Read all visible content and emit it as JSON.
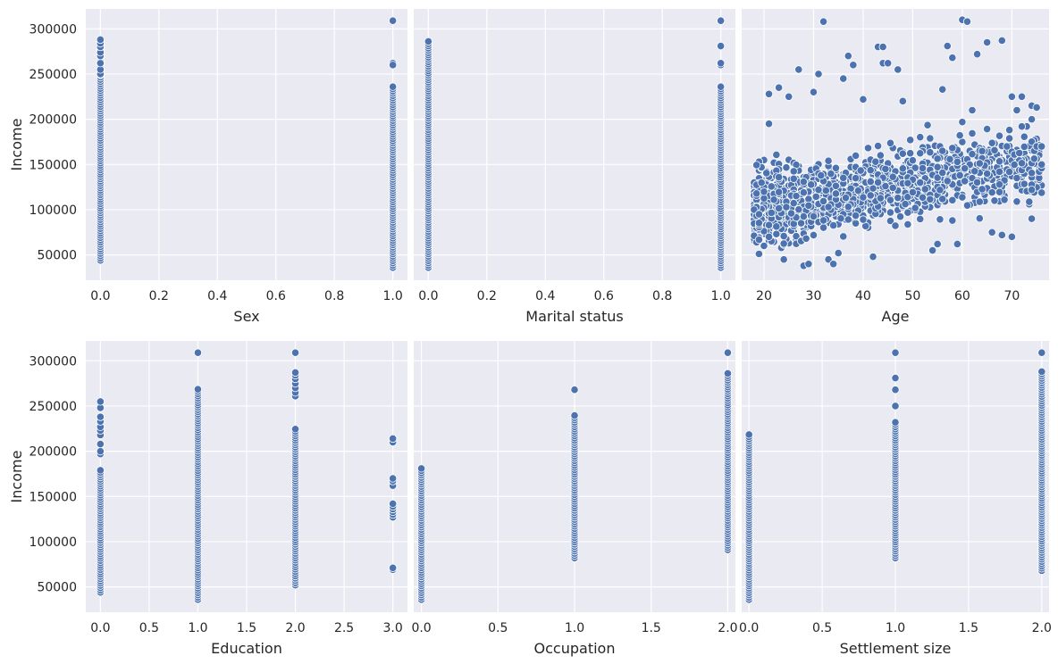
{
  "figure": {
    "background": "#ffffff",
    "plot_background": "#eaeaf2",
    "point_color": "#4c72b0"
  },
  "chart_data": [
    {
      "type": "scatter",
      "xlabel": "Sex",
      "ylabel": "Income",
      "xlim": [
        -0.05,
        1.05
      ],
      "ylim": [
        22000,
        322000
      ],
      "xticks": [
        0,
        0.2,
        0.4,
        0.6,
        0.8,
        1
      ],
      "xtick_labels": [
        "0.0",
        "0.2",
        "0.4",
        "0.6",
        "0.8",
        "1.0"
      ],
      "yticks": [
        50000,
        100000,
        150000,
        200000,
        250000,
        300000
      ],
      "ytick_labels": [
        "50000",
        "100000",
        "150000",
        "200000",
        "250000",
        "300000"
      ],
      "show_y_tick_labels": true,
      "grid": true,
      "series": [
        {
          "x": 0,
          "min": 44000,
          "max": 288000,
          "step": 2500,
          "extras": [
            250000,
            255000,
            262000,
            270000,
            274000,
            280000,
            284000,
            288000
          ]
        },
        {
          "x": 1,
          "min": 36000,
          "max": 236000,
          "step": 2500,
          "extras": [
            262000,
            260000,
            309000
          ]
        }
      ]
    },
    {
      "type": "scatter",
      "xlabel": "Marital status",
      "ylabel": "",
      "xlim": [
        -0.05,
        1.05
      ],
      "ylim": [
        22000,
        322000
      ],
      "xticks": [
        0,
        0.2,
        0.4,
        0.6,
        0.8,
        1
      ],
      "xtick_labels": [
        "0.0",
        "0.2",
        "0.4",
        "0.6",
        "0.8",
        "1.0"
      ],
      "yticks": [
        50000,
        100000,
        150000,
        200000,
        250000,
        300000
      ],
      "ytick_labels": [],
      "show_y_tick_labels": false,
      "grid": true,
      "series": [
        {
          "x": 0,
          "min": 36000,
          "max": 288000,
          "step": 2500,
          "extras": []
        },
        {
          "x": 1,
          "min": 36000,
          "max": 236000,
          "step": 2500,
          "extras": [
            260000,
            262000,
            281000,
            309000
          ]
        }
      ]
    },
    {
      "type": "scatter",
      "xlabel": "Age",
      "ylabel": "",
      "xlim": [
        15.5,
        77.5
      ],
      "ylim": [
        22000,
        322000
      ],
      "xticks": [
        20,
        30,
        40,
        50,
        60,
        70
      ],
      "xtick_labels": [
        "20",
        "30",
        "40",
        "50",
        "60",
        "70"
      ],
      "yticks": [
        50000,
        100000,
        150000,
        200000,
        250000,
        300000
      ],
      "ytick_labels": [],
      "show_y_tick_labels": false,
      "grid": true,
      "cloud": {
        "n": 1400,
        "age_min": 18,
        "age_max": 76,
        "base": 85000,
        "slope": 900,
        "spread": 36000,
        "seed": 7
      },
      "points": [
        [
          18,
          100000
        ],
        [
          19,
          95000
        ],
        [
          20,
          60000
        ],
        [
          21,
          195000
        ],
        [
          21,
          228000
        ],
        [
          23,
          235000
        ],
        [
          24,
          45000
        ],
        [
          25,
          225000
        ],
        [
          27,
          255000
        ],
        [
          28,
          38000
        ],
        [
          29,
          40000
        ],
        [
          30,
          230000
        ],
        [
          31,
          250000
        ],
        [
          32,
          308000
        ],
        [
          33,
          45000
        ],
        [
          34,
          40000
        ],
        [
          35,
          52000
        ],
        [
          36,
          245000
        ],
        [
          37,
          270000
        ],
        [
          38,
          260000
        ],
        [
          40,
          222000
        ],
        [
          42,
          48000
        ],
        [
          43,
          280000
        ],
        [
          44,
          280000
        ],
        [
          44,
          262000
        ],
        [
          45,
          262000
        ],
        [
          47,
          255000
        ],
        [
          48,
          220000
        ],
        [
          54,
          55000
        ],
        [
          55,
          62000
        ],
        [
          56,
          233000
        ],
        [
          57,
          281000
        ],
        [
          58,
          268000
        ],
        [
          59,
          62000
        ],
        [
          60,
          310000
        ],
        [
          61,
          308000
        ],
        [
          62,
          210000
        ],
        [
          63,
          272000
        ],
        [
          65,
          285000
        ],
        [
          66,
          75000
        ],
        [
          68,
          287000
        ],
        [
          68,
          72000
        ],
        [
          70,
          225000
        ],
        [
          70,
          70000
        ],
        [
          71,
          210000
        ],
        [
          72,
          225000
        ],
        [
          73,
          192000
        ],
        [
          74,
          215000
        ],
        [
          74,
          90000
        ],
        [
          74,
          122000
        ],
        [
          75,
          213000
        ],
        [
          75,
          170000
        ],
        [
          76,
          170000
        ],
        [
          72,
          192000
        ],
        [
          71,
          135000
        ],
        [
          69,
          170000
        ]
      ]
    },
    {
      "type": "scatter",
      "xlabel": "Education",
      "ylabel": "Income",
      "xlim": [
        -0.15,
        3.15
      ],
      "ylim": [
        22000,
        322000
      ],
      "xticks": [
        0,
        0.5,
        1,
        1.5,
        2,
        2.5,
        3
      ],
      "xtick_labels": [
        "0.0",
        "0.5",
        "1.0",
        "1.5",
        "2.0",
        "2.5",
        "3.0"
      ],
      "yticks": [
        50000,
        100000,
        150000,
        200000,
        250000,
        300000
      ],
      "ytick_labels": [
        "50000",
        "100000",
        "150000",
        "200000",
        "250000",
        "300000"
      ],
      "show_y_tick_labels": true,
      "grid": true,
      "series": [
        {
          "x": 0,
          "min": 44000,
          "max": 180000,
          "step": 2500,
          "extras": [
            197000,
            200000,
            208000,
            218000,
            223000,
            227000,
            233000,
            238000,
            248000,
            255000
          ]
        },
        {
          "x": 1,
          "min": 36000,
          "max": 270000,
          "step": 2500,
          "extras": [
            309000
          ]
        },
        {
          "x": 2,
          "min": 52000,
          "max": 226000,
          "step": 2500,
          "extras": [
            261000,
            265000,
            270000,
            275000,
            280000,
            284000,
            287000,
            309000
          ]
        },
        {
          "x": 3,
          "min": 127000,
          "max": 143000,
          "step": 3000,
          "extras": [
            69000,
            71000,
            162000,
            167000,
            170000,
            210000,
            214000
          ]
        }
      ]
    },
    {
      "type": "scatter",
      "xlabel": "Occupation",
      "ylabel": "",
      "xlim": [
        -0.05,
        2.05
      ],
      "ylim": [
        22000,
        322000
      ],
      "xticks": [
        0,
        0.5,
        1,
        1.5,
        2
      ],
      "xtick_labels": [
        "0.0",
        "0.5",
        "1.0",
        "1.5",
        "2.0"
      ],
      "yticks": [
        50000,
        100000,
        150000,
        200000,
        250000,
        300000
      ],
      "ytick_labels": [],
      "show_y_tick_labels": false,
      "grid": true,
      "series": [
        {
          "x": 0,
          "min": 36000,
          "max": 181000,
          "step": 2500,
          "extras": []
        },
        {
          "x": 1,
          "min": 82000,
          "max": 241000,
          "step": 2500,
          "extras": [
            268000
          ]
        },
        {
          "x": 2,
          "min": 91000,
          "max": 288000,
          "step": 2500,
          "extras": [
            309000
          ]
        }
      ]
    },
    {
      "type": "scatter",
      "xlabel": "Settlement size",
      "ylabel": "",
      "xlim": [
        -0.05,
        2.05
      ],
      "ylim": [
        22000,
        322000
      ],
      "xticks": [
        0,
        0.5,
        1,
        1.5,
        2
      ],
      "xtick_labels": [
        "0.0",
        "0.5",
        "1.0",
        "1.5",
        "2.0"
      ],
      "yticks": [
        50000,
        100000,
        150000,
        200000,
        250000,
        300000
      ],
      "ytick_labels": [],
      "show_y_tick_labels": false,
      "grid": true,
      "series": [
        {
          "x": 0,
          "min": 36000,
          "max": 220000,
          "step": 2500,
          "extras": []
        },
        {
          "x": 1,
          "min": 82000,
          "max": 232000,
          "step": 2500,
          "extras": [
            250000,
            268000,
            281000,
            309000
          ]
        },
        {
          "x": 2,
          "min": 68000,
          "max": 288000,
          "step": 2500,
          "extras": [
            309000
          ]
        }
      ]
    }
  ]
}
